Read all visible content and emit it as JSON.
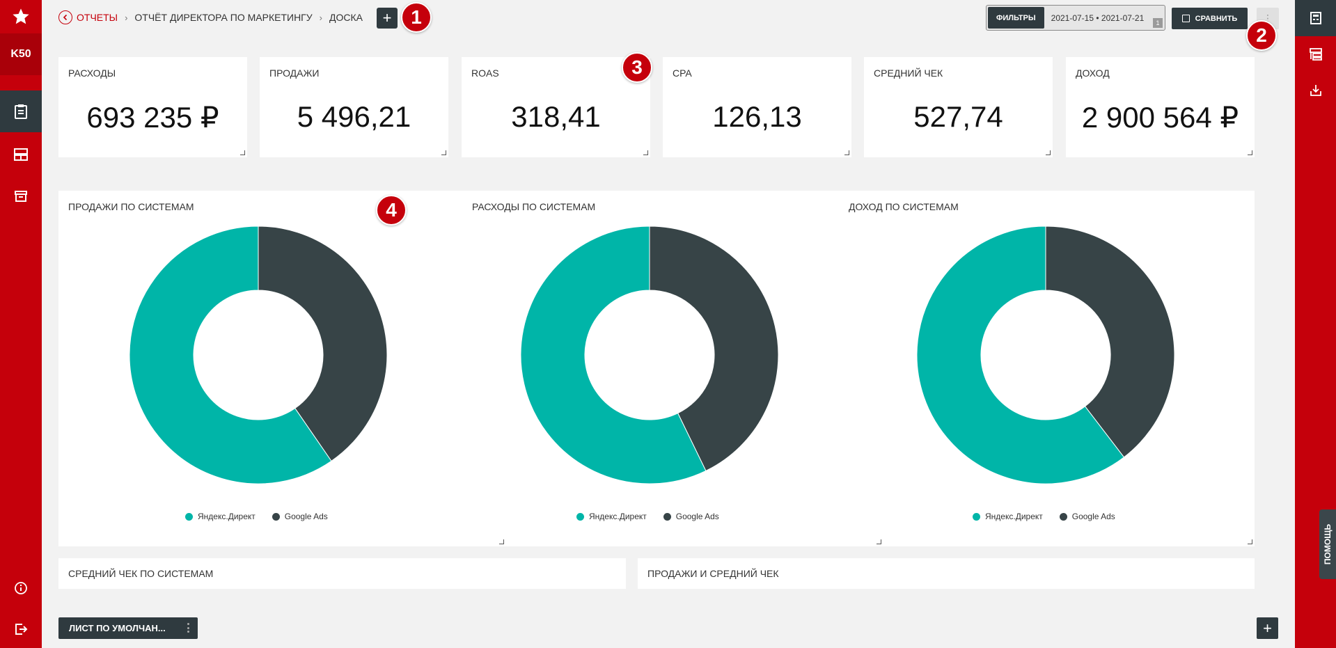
{
  "sidebar": {
    "brand": "K50"
  },
  "breadcrumbs": {
    "reports": "ОТЧЕТЫ",
    "report_name": "ОТЧЁТ ДИРЕКТОРА ПО МАРКЕТИНГУ",
    "board": "ДОСКА"
  },
  "markers": [
    "1",
    "2",
    "3",
    "4"
  ],
  "toolbar": {
    "filters_label": "ФИЛЬТРЫ",
    "date_range": "2021-07-15 • 2021-07-21",
    "filters_badge": "1",
    "compare_label": "СРАВНИТЬ"
  },
  "kpis": [
    {
      "title": "РАСХОДЫ",
      "value": "693 235 ₽"
    },
    {
      "title": "ПРОДАЖИ",
      "value": "5 496,21"
    },
    {
      "title": "ROAS",
      "value": "318,41"
    },
    {
      "title": "CPA",
      "value": "126,13"
    },
    {
      "title": "СРЕДНИЙ ЧЕК",
      "value": "527,74"
    },
    {
      "title": "ДОХОД",
      "value": "2 900 564 ₽"
    }
  ],
  "colors": {
    "accent": "#c5000b",
    "dark": "#2f3a3f",
    "teal": "#00b5a8",
    "slate": "#374447"
  },
  "chart_data": [
    {
      "type": "pie",
      "title": "ПРОДАЖИ ПО СИСТЕМАМ",
      "categories": [
        "Яндекс.Директ",
        "Google Ads"
      ],
      "values": [
        59.6,
        40.4
      ],
      "legend": "bottom"
    },
    {
      "type": "pie",
      "title": "РАСХОДЫ ПО СИСТЕМАМ",
      "categories": [
        "Яндекс.Директ",
        "Google Ads"
      ],
      "values": [
        57.2,
        42.8
      ],
      "legend": "bottom"
    },
    {
      "type": "pie",
      "title": "ДОХОД ПО СИСТЕМАМ",
      "categories": [
        "Яндекс.Директ",
        "Google Ads"
      ],
      "values": [
        60.4,
        39.6
      ],
      "legend": "bottom"
    }
  ],
  "lower_cards": {
    "avg_check": "СРЕДНИЙ ЧЕК ПО СИСТЕМАМ",
    "sales_avg": "ПРОДАЖИ И СРЕДНИЙ ЧЕК"
  },
  "help_label": "ПОМОЩЬ",
  "sheet_tab": "ЛИСТ ПО УМОЛЧАН..."
}
